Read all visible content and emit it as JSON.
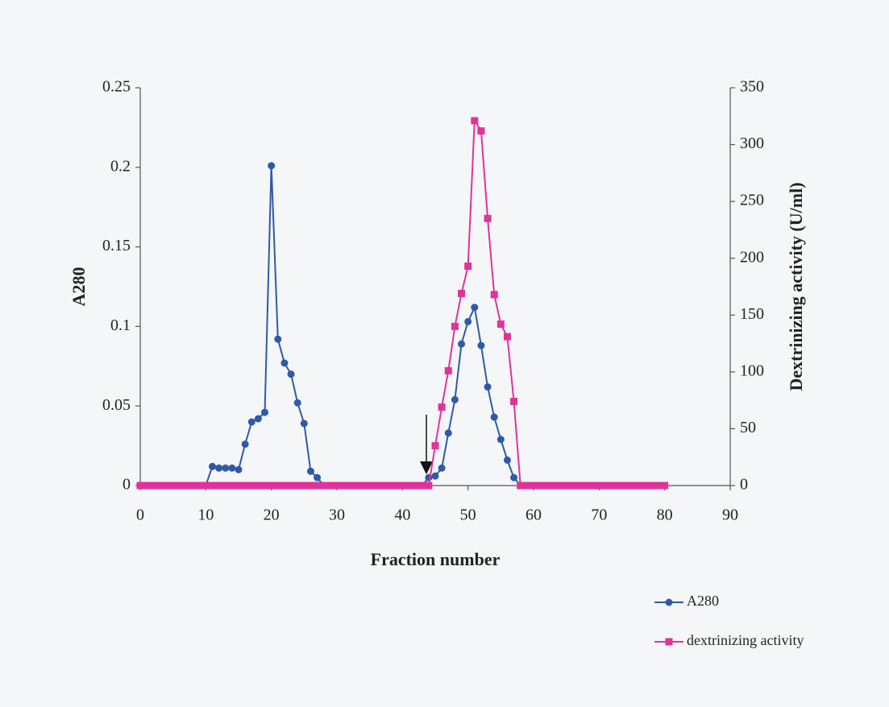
{
  "chart_data": {
    "type": "line",
    "xlabel": "Fraction number",
    "ylabel": "A280",
    "y2label": "Dextrinizing activity (U/ml)",
    "x": [
      0,
      1,
      2,
      3,
      4,
      5,
      6,
      7,
      8,
      9,
      10,
      11,
      12,
      13,
      14,
      15,
      16,
      17,
      18,
      19,
      20,
      21,
      22,
      23,
      24,
      25,
      26,
      27,
      28,
      29,
      30,
      31,
      32,
      33,
      34,
      35,
      36,
      37,
      38,
      39,
      40,
      41,
      42,
      43,
      44,
      45,
      46,
      47,
      48,
      49,
      50,
      51,
      52,
      53,
      54,
      55,
      56,
      57,
      58,
      59,
      60,
      61,
      62,
      63,
      64,
      65,
      66,
      67,
      68,
      69,
      70,
      71,
      72,
      73,
      74,
      75,
      76,
      77,
      78,
      79,
      80
    ],
    "series": [
      {
        "name": "A280",
        "color": "#2e5aa8",
        "marker": "circle",
        "axis": "y",
        "values": [
          0,
          0,
          0,
          0,
          0,
          0,
          0,
          0,
          0,
          0,
          0,
          0.012,
          0.011,
          0.011,
          0.011,
          0.01,
          0.026,
          0.04,
          0.042,
          0.046,
          0.201,
          0.092,
          0.077,
          0.07,
          0.052,
          0.039,
          0.009,
          0.005,
          0,
          0,
          0,
          0,
          0,
          0,
          0,
          0,
          0,
          0,
          0,
          0,
          0,
          0,
          0,
          0,
          0.005,
          0.006,
          0.011,
          0.033,
          0.054,
          0.089,
          0.103,
          0.112,
          0.088,
          0.062,
          0.043,
          0.029,
          0.016,
          0.005,
          0,
          0,
          0,
          0,
          0,
          0,
          0,
          0,
          0,
          0,
          0,
          0,
          0,
          0,
          0,
          0,
          0,
          0,
          0,
          0,
          0,
          0,
          0
        ]
      },
      {
        "name": "dextrinizing activity",
        "color": "#e0339a",
        "marker": "square",
        "axis": "y2",
        "values": [
          0,
          0,
          0,
          0,
          0,
          0,
          0,
          0,
          0,
          0,
          0,
          0,
          0,
          0,
          0,
          0,
          0,
          0,
          0,
          0,
          0,
          0,
          0,
          0,
          0,
          0,
          0,
          0,
          0,
          0,
          0,
          0,
          0,
          0,
          0,
          0,
          0,
          0,
          0,
          0,
          0,
          0,
          0,
          0,
          0,
          35,
          69,
          101,
          140,
          169,
          193,
          321,
          312,
          235,
          168,
          142,
          131,
          74,
          0,
          0,
          0,
          0,
          0,
          0,
          0,
          0,
          0,
          0,
          0,
          0,
          0,
          0,
          0,
          0,
          0,
          0,
          0,
          0,
          0,
          0,
          0
        ]
      }
    ],
    "xlim": [
      0,
      90
    ],
    "xticks": [
      0,
      10,
      20,
      30,
      40,
      50,
      60,
      70,
      80,
      90
    ],
    "ylim": [
      0,
      0.25
    ],
    "yticks": [
      0,
      0.05,
      0.1,
      0.15,
      0.2,
      0.25
    ],
    "y2lim": [
      0,
      350
    ],
    "y2ticks": [
      0,
      50,
      100,
      150,
      200,
      250,
      300,
      350
    ],
    "legend": "lower right"
  }
}
